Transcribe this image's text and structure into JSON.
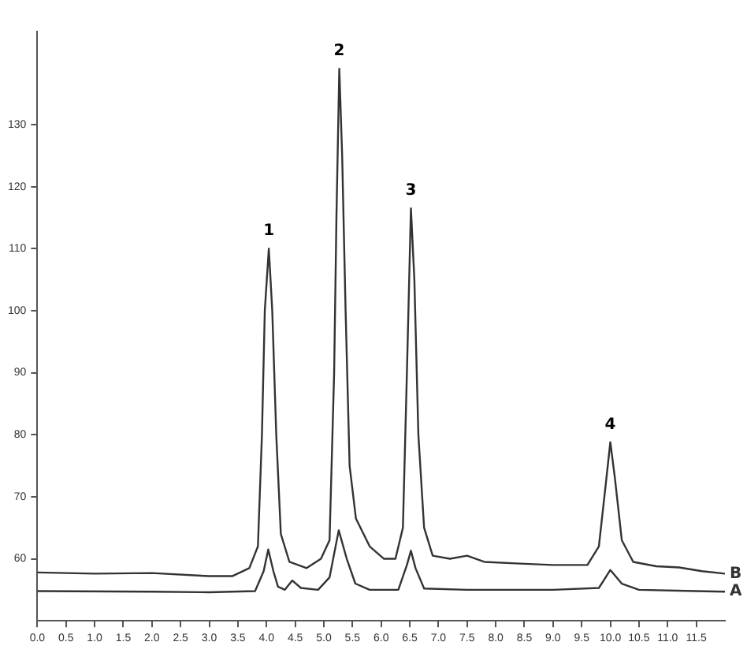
{
  "chart_data": {
    "type": "line",
    "grid": false,
    "legend": false,
    "marker": "none",
    "line_style": "solid",
    "xlim": [
      0,
      12
    ],
    "ylim": [
      50,
      145
    ],
    "xticks": [
      {
        "value": 0,
        "label": "0.0"
      },
      {
        "value": 0.5,
        "label": "0.5"
      },
      {
        "value": 1,
        "label": "1.0"
      },
      {
        "value": 1.5,
        "label": "1.5"
      },
      {
        "value": 2,
        "label": "2.0"
      },
      {
        "value": 2.5,
        "label": "2.5"
      },
      {
        "value": 3,
        "label": "3.0"
      },
      {
        "value": 3.5,
        "label": "3.5"
      },
      {
        "value": 4,
        "label": "4.0"
      },
      {
        "value": 4.5,
        "label": "4.5"
      },
      {
        "value": 5,
        "label": "5.0"
      },
      {
        "value": 5.5,
        "label": "5.5"
      },
      {
        "value": 6,
        "label": "6.0"
      },
      {
        "value": 6.5,
        "label": "6.5"
      },
      {
        "value": 7,
        "label": "7.0"
      },
      {
        "value": 7.5,
        "label": "7.5"
      },
      {
        "value": 8,
        "label": "8.0"
      },
      {
        "value": 8.5,
        "label": "8.5"
      },
      {
        "value": 9,
        "label": "9.0"
      },
      {
        "value": 9.5,
        "label": "9.5"
      },
      {
        "value": 10,
        "label": "10.0"
      },
      {
        "value": 10.5,
        "label": "10.5"
      },
      {
        "value": 11,
        "label": "11.0"
      },
      {
        "value": 11.5,
        "label": "11.5"
      }
    ],
    "yticks": [
      60,
      70,
      80,
      90,
      100,
      110,
      120,
      130
    ],
    "series": [
      {
        "name": "B",
        "color": "#333333",
        "x": [
          0,
          1,
          2,
          3,
          3.4,
          3.7,
          3.85,
          3.92,
          3.97,
          4.04,
          4.1,
          4.17,
          4.25,
          4.4,
          4.7,
          4.95,
          5.1,
          5.18,
          5.22,
          5.27,
          5.32,
          5.38,
          5.45,
          5.56,
          5.8,
          6.05,
          6.25,
          6.38,
          6.45,
          6.52,
          6.58,
          6.65,
          6.75,
          6.9,
          7.2,
          7.5,
          7.8,
          8.5,
          9,
          9.6,
          9.8,
          9.92,
          10,
          10.08,
          10.2,
          10.4,
          10.8,
          11.2,
          11.6,
          12
        ],
        "values": [
          57.8,
          57.6,
          57.7,
          57.2,
          57.2,
          58.5,
          62,
          80,
          100,
          110,
          100,
          80,
          64,
          59.5,
          58.5,
          60,
          63,
          90,
          115,
          139,
          125,
          100,
          75,
          66.5,
          62,
          60,
          60,
          65,
          90,
          116.5,
          105,
          80,
          65,
          60.5,
          60,
          60.5,
          59.5,
          59.2,
          59,
          59,
          62,
          72,
          78.8,
          73,
          63,
          59.5,
          58.8,
          58.6,
          58,
          57.6
        ]
      },
      {
        "name": "A",
        "color": "#333333",
        "x": [
          0,
          2,
          3,
          3.8,
          3.95,
          4.03,
          4.12,
          4.2,
          4.32,
          4.45,
          4.6,
          4.9,
          5.1,
          5.26,
          5.4,
          5.55,
          5.8,
          6.3,
          6.45,
          6.52,
          6.6,
          6.75,
          7.5,
          9,
          9.8,
          10,
          10.2,
          10.5,
          11.5,
          12
        ],
        "values": [
          54.8,
          54.7,
          54.6,
          54.8,
          58,
          61.5,
          58,
          55.5,
          55,
          56.5,
          55.3,
          55,
          57,
          64.6,
          60,
          56,
          55,
          55,
          59,
          61.3,
          58.5,
          55.2,
          55,
          55,
          55.3,
          58.2,
          56,
          55,
          54.8,
          54.7
        ]
      }
    ],
    "annotations": [
      {
        "text": "1",
        "x": 4.04,
        "y": 110
      },
      {
        "text": "2",
        "x": 5.27,
        "y": 139
      },
      {
        "text": "3",
        "x": 6.52,
        "y": 116.5
      },
      {
        "text": "4",
        "x": 10,
        "y": 78.8
      }
    ]
  }
}
